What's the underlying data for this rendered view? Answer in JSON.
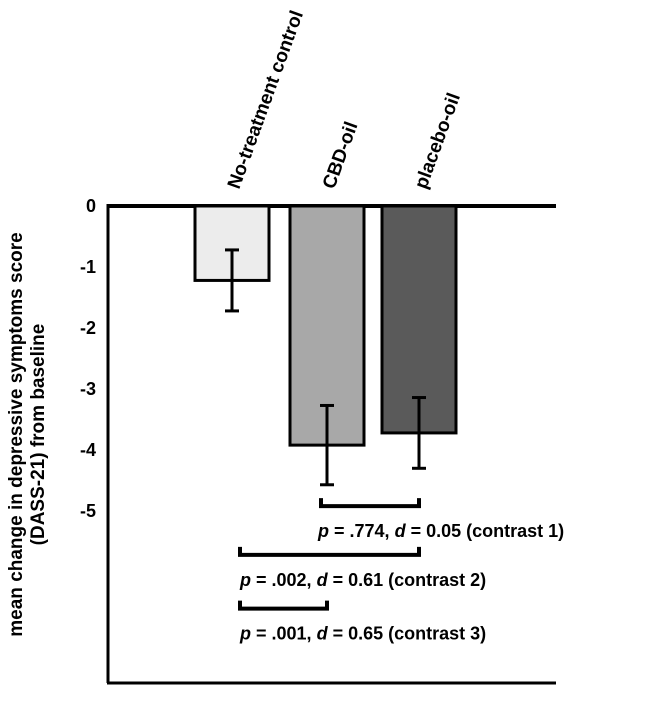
{
  "chart_data": {
    "type": "bar",
    "title": "",
    "xlabel": "",
    "ylabel_lines": [
      "mean change in depressive symptoms score",
      "(DASS-21) from baseline"
    ],
    "categories": [
      "No-treatment control",
      "CBD-oil",
      "placebo-oil"
    ],
    "values": [
      -1.22,
      -3.92,
      -3.72
    ],
    "error": [
      0.5,
      0.65,
      0.58
    ],
    "bar_colors": [
      "#ececec",
      "#a8a8a8",
      "#5a5a5a"
    ],
    "ylim": [
      -7.8,
      0
    ],
    "yticks": [
      0,
      -1,
      -2,
      -3,
      -4,
      -5
    ],
    "grid": false,
    "legend": "none",
    "contrasts": [
      {
        "from": 1,
        "to": 2,
        "level": -4.92,
        "p": ".774",
        "d": "0.05",
        "label": "(contrast 1)"
      },
      {
        "from": 0,
        "to": 2,
        "level": -5.72,
        "p": ".002",
        "d": "0.61",
        "label": "(contrast 2)"
      },
      {
        "from": 0,
        "to": 1,
        "level": -6.6,
        "p": ".001",
        "d": "0.65",
        "label": "(contrast 3)"
      }
    ]
  },
  "labels": {
    "p_symbol": "p",
    "d_symbol": "d",
    "equals": " = ",
    "comma": ", "
  }
}
